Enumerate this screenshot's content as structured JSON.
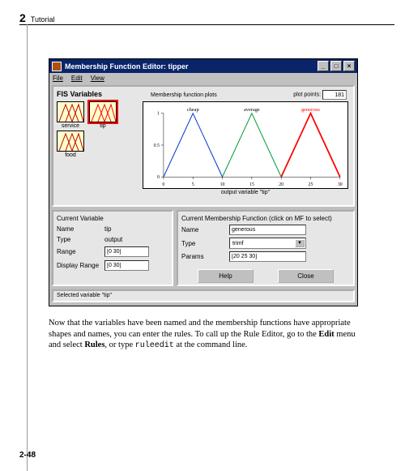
{
  "header": {
    "chapter_num": "2",
    "chapter_title": "Tutorial"
  },
  "page_number": "2-48",
  "window": {
    "title": "Membership Function Editor: tipper",
    "menu": {
      "file": "File",
      "edit": "Edit",
      "view": "View"
    },
    "winbtns": {
      "min": "_",
      "max": "□",
      "close": "×"
    }
  },
  "fis": {
    "heading": "FIS Variables",
    "vars": [
      {
        "label": "service",
        "selected": false,
        "type": "input"
      },
      {
        "label": "tip",
        "selected": true,
        "type": "output"
      },
      {
        "label": "food",
        "selected": false,
        "type": "input"
      }
    ]
  },
  "plot": {
    "header": "Membership function plots",
    "points_label": "plot points:",
    "points_value": "181",
    "mf_labels": [
      "cheap",
      "average",
      "generous"
    ],
    "mf_colors": [
      "#0033cc",
      "#009933",
      "#ff0000"
    ],
    "selected_index": 2,
    "xlim": [
      0,
      30
    ],
    "xticks": [
      0,
      5,
      10,
      15,
      20,
      25,
      30
    ],
    "ylim": [
      0,
      1
    ],
    "yticks": [
      0,
      0.5,
      1
    ],
    "peaks_x": [
      5,
      15,
      25
    ],
    "half_width": 5,
    "xlabel": "output variable \"tip\""
  },
  "current_var": {
    "title": "Current Variable",
    "name_lbl": "Name",
    "name_val": "tip",
    "type_lbl": "Type",
    "type_val": "output",
    "range_lbl": "Range",
    "range_val": "[0 30]",
    "drange_lbl": "Display Range",
    "drange_val": "[0 30]"
  },
  "current_mf": {
    "title": "Current Membership Function (click on MF to select)",
    "name_lbl": "Name",
    "name_val": "generous",
    "type_lbl": "Type",
    "type_val": "trimf",
    "params_lbl": "Params",
    "params_val": "[20 25 30]",
    "help_btn": "Help",
    "close_btn": "Close"
  },
  "status": "Selected variable \"tip\"",
  "bodytext": {
    "t1": "Now that the variables have been named and the membership functions have appropriate shapes and names, you can enter the rules. To call up the Rule Editor, go to the ",
    "b1": "Edit",
    "t2": " menu and select ",
    "b2": "Rules",
    "t3": ", or type ",
    "tt": "ruleedit",
    "t4": " at the command line."
  }
}
